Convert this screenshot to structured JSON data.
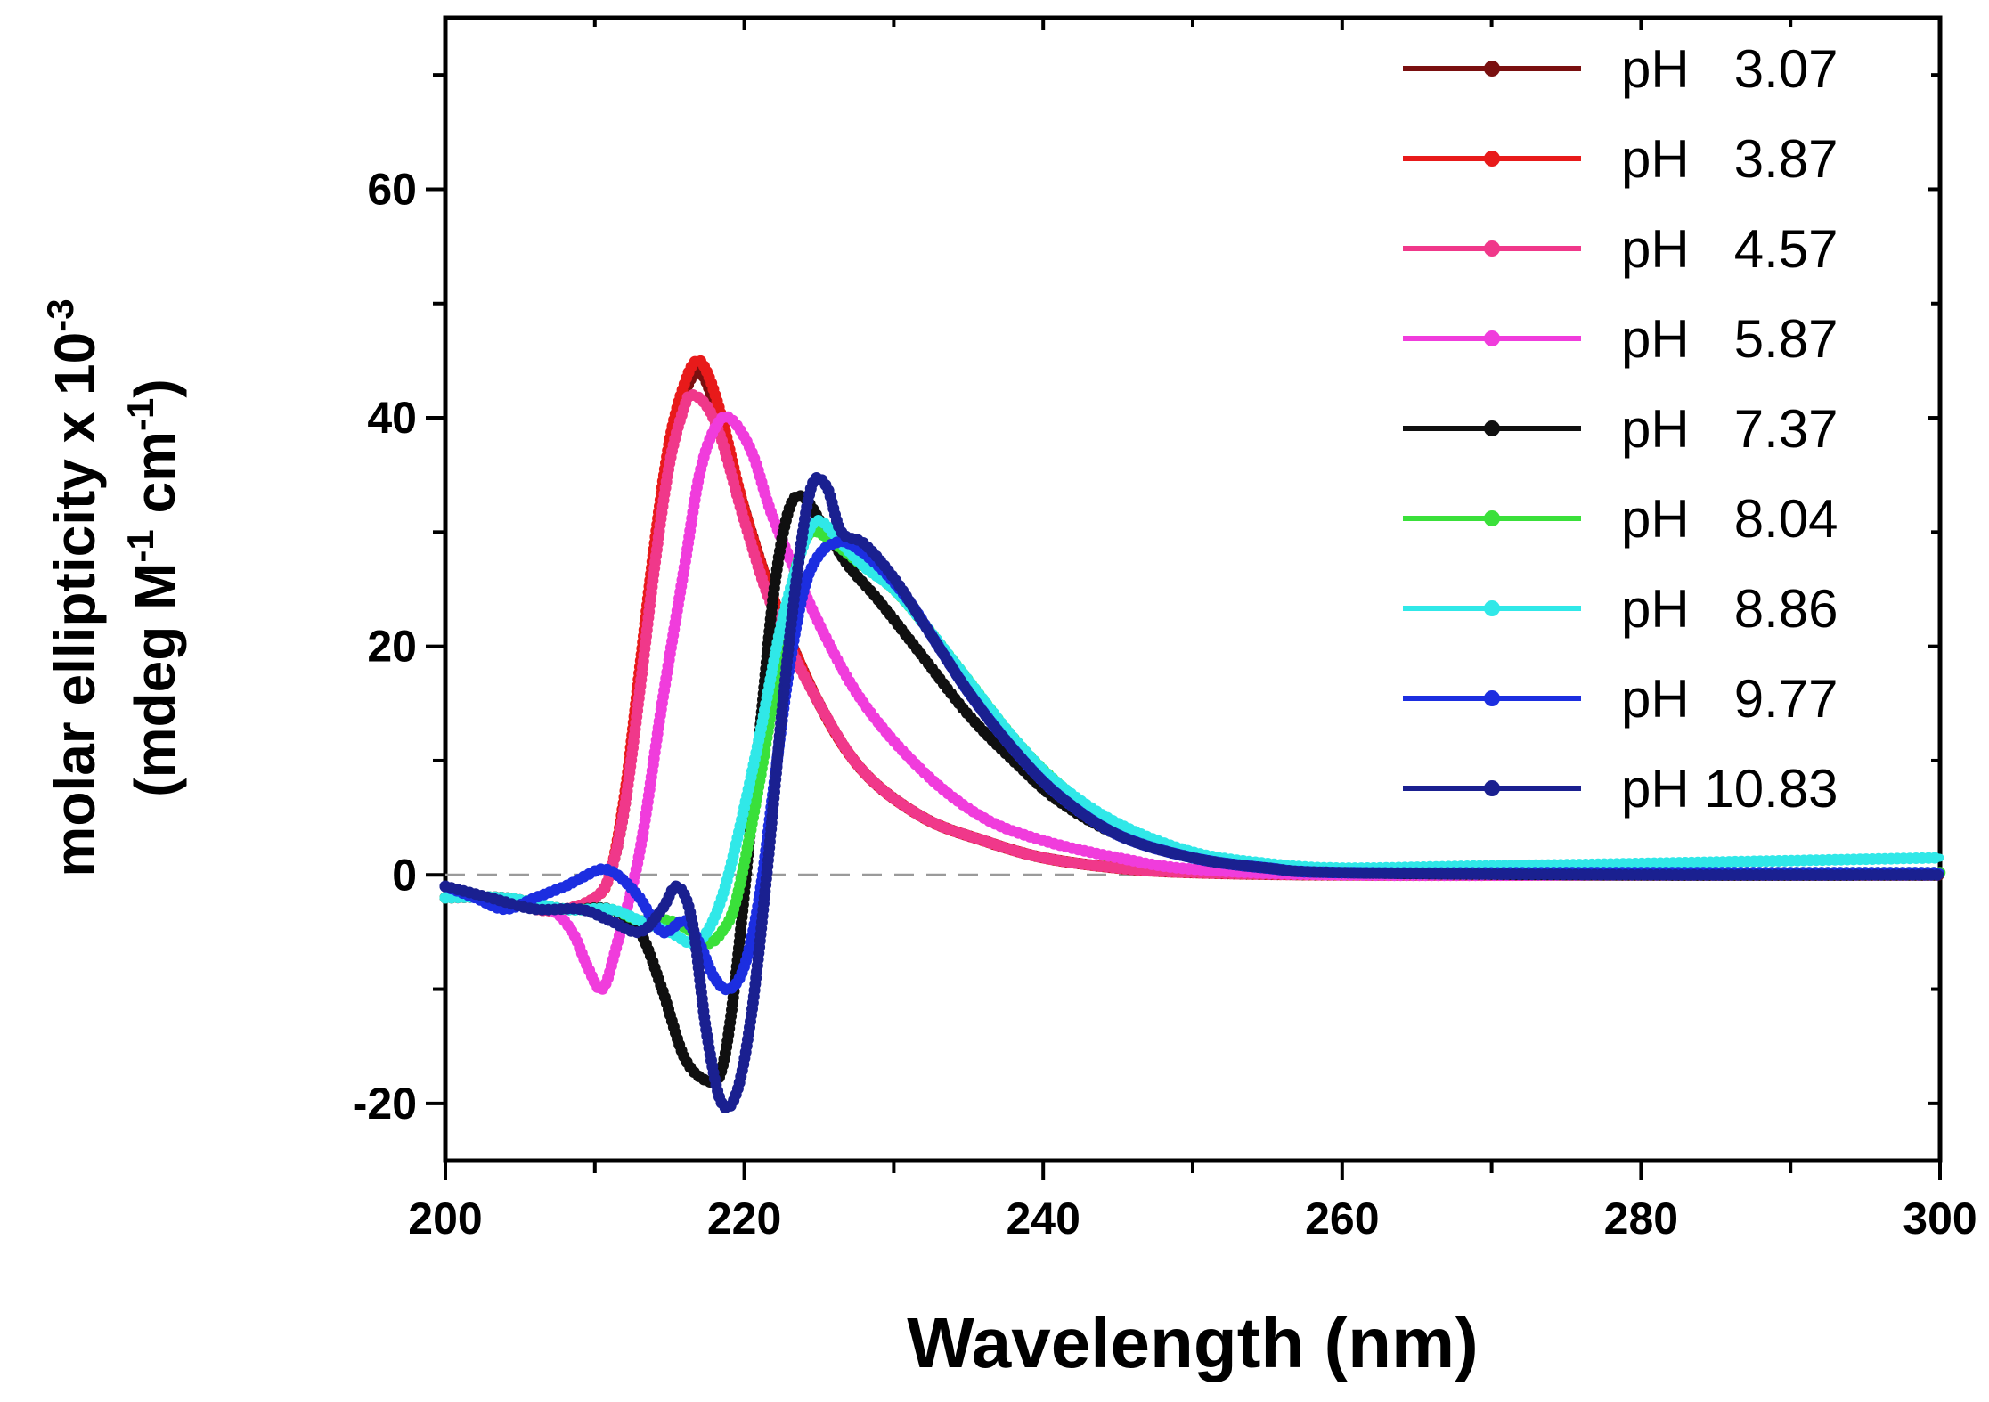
{
  "chart_data": {
    "type": "line",
    "xlabel": "Wavelength (nm)",
    "ylabel_line1": "molar ellipticity x 10",
    "ylabel_line1_exp": "-3",
    "ylabel_line2_a": "(mdeg M",
    "ylabel_line2_exp1": "-1",
    "ylabel_line2_b": " cm",
    "ylabel_line2_exp2": "-1",
    "ylabel_line2_c": ")",
    "xlim": [
      200,
      300
    ],
    "ylim": [
      -25,
      75
    ],
    "xticks": [
      200,
      220,
      240,
      260,
      280,
      300
    ],
    "xtick_labels": [
      "200",
      "220",
      "240",
      "260",
      "280",
      "300"
    ],
    "yticks": [
      -20,
      0,
      20,
      40,
      60
    ],
    "ytick_labels": [
      "-20",
      "0",
      "20",
      "40",
      "60"
    ],
    "legend_position": "top-right",
    "series": [
      {
        "name": "pH   3.07",
        "color": "#7a1010",
        "x": [
          200,
          204,
          206,
          208,
          210,
          211,
          212,
          213,
          214,
          215,
          216,
          216.8,
          217.5,
          218.5,
          220,
          222,
          225,
          228,
          232,
          236,
          240,
          245,
          250,
          260,
          280,
          300
        ],
        "y": [
          -2,
          -2,
          -3,
          -3,
          -2,
          0,
          6,
          17,
          28,
          37,
          42,
          44,
          43,
          39,
          32,
          24,
          15,
          9,
          5,
          3,
          1.5,
          0.6,
          0.2,
          0,
          0,
          0
        ]
      },
      {
        "name": "pH   3.87",
        "color": "#e81a1a",
        "x": [
          200,
          204,
          206,
          208,
          210,
          211,
          212,
          213,
          214,
          215,
          216,
          216.8,
          217.5,
          218.5,
          220,
          222,
          225,
          228,
          232,
          236,
          240,
          245,
          250,
          260,
          280,
          300
        ],
        "y": [
          -2,
          -2,
          -3,
          -3,
          -2,
          0,
          7,
          18,
          29,
          38,
          43,
          45,
          44,
          40,
          32,
          24,
          15,
          9,
          5,
          3,
          1.5,
          0.6,
          0.2,
          0,
          0,
          0
        ]
      },
      {
        "name": "pH   4.57",
        "color": "#f0388a",
        "x": [
          200,
          204,
          206,
          208,
          210,
          211,
          212,
          213,
          214,
          215,
          216,
          216.5,
          217.5,
          218.5,
          220,
          222,
          225,
          228,
          232,
          236,
          240,
          245,
          250,
          260,
          280,
          300
        ],
        "y": [
          -2,
          -2,
          -3,
          -3,
          -2,
          0,
          6,
          16,
          27,
          36,
          41,
          42,
          41,
          38,
          31,
          23,
          15,
          9,
          5,
          3,
          1.5,
          0.6,
          0.2,
          0,
          0,
          0
        ]
      },
      {
        "name": "pH   5.87",
        "color": "#f03cdc",
        "x": [
          200,
          204,
          207,
          208.5,
          209.5,
          210.5,
          211.5,
          213,
          214.5,
          216,
          217,
          218,
          219,
          220.5,
          222,
          225,
          228,
          232,
          236,
          240,
          245,
          250,
          260,
          280,
          300
        ],
        "y": [
          -2,
          -2,
          -3,
          -5,
          -8,
          -10,
          -6,
          2,
          15,
          27,
          35,
          39,
          40,
          37,
          31,
          22,
          15,
          9,
          5,
          3,
          1.5,
          0.5,
          0,
          0,
          0
        ]
      },
      {
        "name": "pH   7.37",
        "color": "#101010",
        "x": [
          200,
          204,
          208,
          211,
          213,
          214.5,
          216,
          217.5,
          218.5,
          219.5,
          221,
          222,
          223,
          224,
          225.5,
          227,
          229,
          232,
          235,
          238,
          241,
          245,
          250,
          255,
          260,
          280,
          300
        ],
        "y": [
          -2,
          -2,
          -3,
          -3,
          -5,
          -10,
          -16,
          -18,
          -17,
          -8,
          12,
          25,
          32,
          33,
          30,
          27,
          24,
          19,
          14,
          10,
          6.5,
          3.5,
          1.5,
          0.6,
          0.2,
          0,
          0
        ]
      },
      {
        "name": "pH   8.04",
        "color": "#3ae03a",
        "x": [
          200,
          204,
          208,
          211,
          213,
          215,
          216.5,
          217.5,
          218.5,
          219.5,
          221,
          222.5,
          223.5,
          224.5,
          226,
          228,
          230,
          232,
          235,
          238,
          241,
          245,
          250,
          255,
          260,
          280,
          300
        ],
        "y": [
          -2,
          -2,
          -3,
          -3,
          -4,
          -4,
          -5,
          -6,
          -5,
          -2,
          8,
          20,
          27,
          30,
          29,
          27,
          25,
          22,
          17,
          12,
          8,
          4,
          1.8,
          0.7,
          0.3,
          0.2,
          0.2
        ]
      },
      {
        "name": "pH   8.86",
        "color": "#30e8e8",
        "x": [
          200,
          204,
          208,
          211,
          213,
          215,
          216.5,
          217.5,
          218.5,
          219.5,
          221,
          222.5,
          224,
          225,
          226.5,
          228,
          230,
          232,
          235,
          238,
          241,
          245,
          250,
          255,
          260,
          270,
          280,
          300
        ],
        "y": [
          -2,
          -2,
          -3,
          -3,
          -4,
          -5,
          -6,
          -5,
          -2,
          3,
          12,
          22,
          29,
          31,
          29,
          27,
          25,
          22,
          17,
          12,
          8,
          4.5,
          2,
          1,
          0.6,
          0.8,
          1,
          1.5
        ]
      },
      {
        "name": "pH   9.77",
        "color": "#1c2ee0",
        "x": [
          200,
          202,
          204,
          206,
          208,
          209.5,
          210.5,
          211.5,
          213,
          214.5,
          216,
          217,
          218,
          219,
          220,
          221,
          222,
          223,
          224,
          225,
          226,
          227,
          229,
          231,
          233,
          235,
          238,
          241,
          245,
          250,
          255,
          260,
          280,
          300
        ],
        "y": [
          -1,
          -2,
          -3,
          -2,
          -1,
          0,
          0.5,
          0,
          -2,
          -5,
          -4,
          -6,
          -9,
          -10,
          -8,
          -2,
          8,
          18,
          25,
          28,
          29,
          29,
          27,
          24,
          20,
          16,
          11,
          7,
          3.5,
          1.5,
          0.6,
          0.2,
          0.2,
          0.2
        ]
      },
      {
        "name": "pH 10.83",
        "color": "#1a2090",
        "x": [
          200,
          203,
          206,
          209,
          211,
          213,
          214.5,
          215.5,
          216.5,
          217.5,
          218.5,
          219.5,
          220.5,
          221.5,
          222.5,
          223.5,
          224.5,
          225.5,
          226.5,
          228,
          230,
          232,
          235,
          238,
          241,
          245,
          250,
          255,
          260,
          280,
          300
        ],
        "y": [
          -1,
          -2,
          -3,
          -3,
          -4,
          -5,
          -3,
          -1,
          -4,
          -14,
          -20,
          -19,
          -12,
          0,
          14,
          26,
          34,
          34,
          30,
          29,
          26,
          22,
          16,
          11,
          7,
          3.5,
          1.5,
          0.6,
          0.2,
          0,
          0
        ]
      }
    ]
  }
}
